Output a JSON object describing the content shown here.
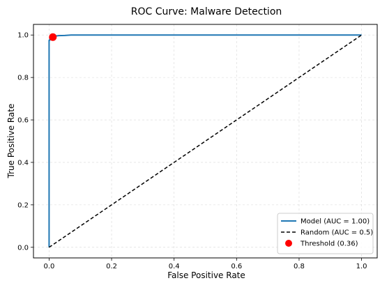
{
  "chart_data": {
    "type": "line",
    "title": "ROC Curve: Malware Detection",
    "xlabel": "False Positive Rate",
    "ylabel": "True Positive Rate",
    "xlim": [
      -0.05,
      1.05
    ],
    "ylim": [
      -0.05,
      1.05
    ],
    "x_ticks": [
      "0.0",
      "0.2",
      "0.4",
      "0.6",
      "0.8",
      "1.0"
    ],
    "y_ticks": [
      "0.0",
      "0.2",
      "0.4",
      "0.6",
      "0.8",
      "1.0"
    ],
    "grid": true,
    "legend_position": "lower-right",
    "series": [
      {
        "name": "Model (AUC = 1.00)",
        "style": "solid",
        "color": "#1f77b4",
        "x": [
          0.0,
          0.0,
          0.002,
          0.002,
          0.005,
          0.005,
          0.008,
          0.01,
          0.015,
          0.02,
          0.03,
          0.05,
          0.07,
          1.0
        ],
        "y": [
          0.0,
          0.975,
          0.975,
          0.98,
          0.98,
          0.985,
          0.99,
          0.99,
          0.993,
          0.995,
          0.997,
          0.998,
          1.0,
          1.0
        ]
      },
      {
        "name": "Random (AUC = 0.5)",
        "style": "dashed",
        "color": "#000000",
        "x": [
          0.0,
          1.0
        ],
        "y": [
          0.0,
          1.0
        ]
      },
      {
        "name": "Threshold (0.36)",
        "style": "marker",
        "color": "#ff0000",
        "x": [
          0.012
        ],
        "y": [
          0.99
        ]
      }
    ]
  }
}
